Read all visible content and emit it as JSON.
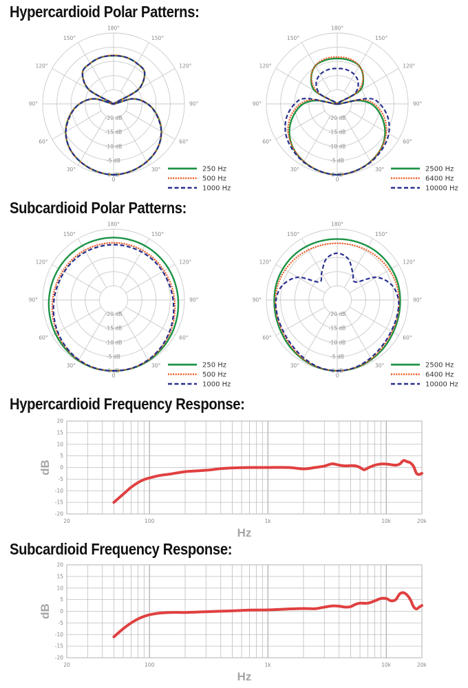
{
  "headings": {
    "hyper_polar": "Hypercardioid Polar Patterns:",
    "sub_polar": "Subcardioid Polar Patterns:",
    "hyper_freq": "Hypercardioid Frequency Response:",
    "sub_freq": "Subcardioid Frequency Response:"
  },
  "chart_data": [
    {
      "id": "hyper-low",
      "type": "polar",
      "angle_labels": [
        "180°",
        "150°",
        "120°",
        "90°",
        "60°",
        "30°",
        "0",
        "30°",
        "60°",
        "90°",
        "120°",
        "150°"
      ],
      "ring_labels": [
        "-20 dB",
        "-15 dB",
        "-10 dB",
        "-5 dB",
        "0 dB"
      ],
      "radial_range_db": [
        -25,
        0
      ],
      "angles_deg": [
        0,
        15,
        30,
        45,
        60,
        75,
        90,
        105,
        110,
        120,
        135,
        150,
        165,
        180
      ],
      "series": [
        {
          "name": "250 Hz",
          "color": "#1a9345",
          "style": "solid",
          "values_db": [
            0,
            -0.5,
            -1.5,
            -3,
            -5.5,
            -9,
            -13,
            -18,
            -25,
            -15,
            -9.5,
            -8.5,
            -8,
            -8
          ]
        },
        {
          "name": "500 Hz",
          "color": "#f0581e",
          "style": "dotted",
          "values_db": [
            0,
            -0.5,
            -1.5,
            -3,
            -5.5,
            -9,
            -13,
            -18,
            -25,
            -15,
            -9.5,
            -8.5,
            -8,
            -7.8
          ]
        },
        {
          "name": "1000 Hz",
          "color": "#262e8e",
          "style": "dashed",
          "values_db": [
            0,
            -0.5,
            -1.5,
            -3,
            -5.6,
            -9.2,
            -13,
            -18,
            -25,
            -15,
            -9.5,
            -8.5,
            -8,
            -8
          ]
        }
      ]
    },
    {
      "id": "hyper-high",
      "type": "polar",
      "angle_labels": [
        "180°",
        "150°",
        "120°",
        "90°",
        "60°",
        "30°",
        "0",
        "30°",
        "60°",
        "90°",
        "120°",
        "150°"
      ],
      "ring_labels": [
        "-20 dB",
        "-15 dB",
        "-10 dB",
        "-5 dB",
        "0 dB"
      ],
      "radial_range_db": [
        -25,
        0
      ],
      "angles_deg": [
        0,
        15,
        30,
        45,
        60,
        75,
        90,
        100,
        110,
        120,
        135,
        150,
        165,
        180
      ],
      "series": [
        {
          "name": "2500 Hz",
          "color": "#1a9345",
          "style": "solid",
          "values_db": [
            0,
            -0.5,
            -1.5,
            -3,
            -5.5,
            -9,
            -13,
            -18,
            -25,
            -16,
            -12,
            -9.5,
            -9,
            -9
          ]
        },
        {
          "name": "6400 Hz",
          "color": "#f0581e",
          "style": "dotted",
          "values_db": [
            0,
            -0.5,
            -1.5,
            -3,
            -5,
            -8,
            -12,
            -16.5,
            -25,
            -17,
            -12,
            -9.5,
            -8.5,
            -8.5
          ]
        },
        {
          "name": "10000 Hz",
          "color": "#262e8e",
          "style": "dashed",
          "values_db": [
            0,
            -0.5,
            -1.3,
            -2.5,
            -4,
            -6.5,
            -10,
            -14,
            -25,
            -18,
            -14.5,
            -13,
            -12.5,
            -12.5
          ]
        }
      ]
    },
    {
      "id": "sub-low",
      "type": "polar",
      "angle_labels": [
        "180°",
        "150°",
        "120°",
        "90°",
        "60°",
        "30°",
        "0",
        "30°",
        "60°",
        "90°",
        "120°",
        "150°"
      ],
      "ring_labels": [
        "-20 dB",
        "-15 dB",
        "-10 dB",
        "-5 dB",
        "0 dB"
      ],
      "radial_range_db": [
        -25,
        0
      ],
      "angles_deg": [
        0,
        15,
        30,
        45,
        60,
        75,
        90,
        105,
        120,
        135,
        150,
        165,
        180
      ],
      "series": [
        {
          "name": "250 Hz",
          "color": "#1a9345",
          "style": "solid",
          "values_db": [
            0,
            0,
            -0.3,
            -0.8,
            -1.3,
            -1.8,
            -2.2,
            -2.5,
            -2.7,
            -2.8,
            -2.9,
            -3,
            -3
          ]
        },
        {
          "name": "500 Hz",
          "color": "#f0581e",
          "style": "dotted",
          "values_db": [
            0,
            -0.1,
            -0.5,
            -1.2,
            -2,
            -2.8,
            -3.5,
            -4,
            -4.4,
            -4.6,
            -4.7,
            -4.8,
            -4.8
          ]
        },
        {
          "name": "1000 Hz",
          "color": "#262e8e",
          "style": "dashed",
          "values_db": [
            0,
            -0.1,
            -0.6,
            -1.4,
            -2.3,
            -3.2,
            -4,
            -4.6,
            -5,
            -5.2,
            -5.4,
            -5.5,
            -5.5
          ]
        }
      ]
    },
    {
      "id": "sub-high",
      "type": "polar",
      "angle_labels": [
        "180°",
        "150°",
        "120°",
        "90°",
        "60°",
        "30°",
        "0",
        "30°",
        "60°",
        "90°",
        "120°",
        "150°"
      ],
      "ring_labels": [
        "-20 dB",
        "-15 dB",
        "-10 dB",
        "-5 dB",
        "0 dB"
      ],
      "radial_range_db": [
        -25,
        0
      ],
      "angles_deg": [
        0,
        15,
        30,
        45,
        60,
        75,
        90,
        105,
        120,
        135,
        150,
        165,
        180
      ],
      "series": [
        {
          "name": "2500 Hz",
          "color": "#1a9345",
          "style": "solid",
          "values_db": [
            0,
            -0.2,
            -0.8,
            -1.5,
            -2.2,
            -2.6,
            -2.8,
            -2.8,
            -2.9,
            -3,
            -3.2,
            -3.4,
            -3.5
          ]
        },
        {
          "name": "6400 Hz",
          "color": "#f0581e",
          "style": "dotted",
          "values_db": [
            0,
            -0.3,
            -1,
            -2,
            -2.7,
            -3,
            -3.2,
            -3.4,
            -3.8,
            -4.2,
            -4.6,
            -4.9,
            -5
          ]
        },
        {
          "name": "10000 Hz",
          "color": "#262e8e",
          "style": "dashed",
          "values_db": [
            0,
            -0.4,
            -1.4,
            -2.4,
            -3,
            -3.2,
            -3.4,
            -5,
            -9,
            -16,
            -14,
            -10,
            -8.5
          ]
        }
      ]
    },
    {
      "id": "hyper-freq",
      "type": "line",
      "xlabel": "Hz",
      "ylabel": "dB",
      "x_scale": "log",
      "xlim": [
        20,
        20000
      ],
      "ylim": [
        -20,
        20
      ],
      "xtick_labels": [
        {
          "value": 20,
          "label": "20"
        },
        {
          "value": 100,
          "label": "100"
        },
        {
          "value": 1000,
          "label": "1k"
        },
        {
          "value": 10000,
          "label": "10k"
        },
        {
          "value": 20000,
          "label": "20k"
        }
      ],
      "yticks": [
        20,
        15,
        10,
        5,
        0,
        -5,
        -10,
        -15,
        -20
      ],
      "series": [
        {
          "color": "#e04040",
          "x": [
            50,
            60,
            70,
            80,
            90,
            100,
            120,
            150,
            200,
            300,
            400,
            500,
            700,
            1000,
            1500,
            2000,
            2500,
            3000,
            3500,
            4000,
            4500,
            5000,
            5500,
            6000,
            6500,
            7000,
            8000,
            9000,
            10000,
            11000,
            12000,
            13000,
            14000,
            15000,
            16000,
            17000,
            18000,
            19000,
            20000
          ],
          "y": [
            -15,
            -11.5,
            -8.5,
            -6.5,
            -5.2,
            -4.5,
            -3.5,
            -2.8,
            -1.8,
            -1.2,
            -0.5,
            -0.2,
            0,
            0,
            0,
            -0.6,
            0,
            0.6,
            1.6,
            1,
            0.7,
            0.8,
            0.7,
            0,
            -1,
            -0.2,
            1,
            1.5,
            1.5,
            1.2,
            1,
            1.5,
            3,
            2.5,
            2,
            0.5,
            -2.5,
            -3,
            -2.5
          ]
        }
      ]
    },
    {
      "id": "sub-freq",
      "type": "line",
      "xlabel": "Hz",
      "ylabel": "dB",
      "x_scale": "log",
      "xlim": [
        20,
        20000
      ],
      "ylim": [
        -20,
        20
      ],
      "xtick_labels": [
        {
          "value": 20,
          "label": "20"
        },
        {
          "value": 100,
          "label": "100"
        },
        {
          "value": 1000,
          "label": "1k"
        },
        {
          "value": 10000,
          "label": "10k"
        },
        {
          "value": 20000,
          "label": "20k"
        }
      ],
      "yticks": [
        20,
        15,
        10,
        5,
        0,
        -5,
        -10,
        -15,
        -20
      ],
      "series": [
        {
          "color": "#e04040",
          "x": [
            50,
            60,
            70,
            80,
            90,
            100,
            120,
            150,
            200,
            300,
            500,
            700,
            1000,
            1500,
            2000,
            2500,
            3000,
            3500,
            4000,
            4500,
            5000,
            5500,
            6000,
            7000,
            8000,
            9000,
            10000,
            11000,
            12000,
            13000,
            14000,
            15000,
            16000,
            17000,
            18000,
            19000,
            20000
          ],
          "y": [
            -11,
            -7.5,
            -5,
            -3.3,
            -2.2,
            -1.5,
            -0.8,
            -0.5,
            -0.5,
            -0.2,
            0.2,
            0.5,
            0.6,
            1,
            1.2,
            1.1,
            1.8,
            2.3,
            2.2,
            1.8,
            2,
            3,
            3.5,
            3.5,
            4.5,
            5.5,
            5.5,
            4.5,
            5,
            7.5,
            8,
            7,
            5,
            2,
            1,
            1.8,
            2.5
          ]
        }
      ]
    }
  ]
}
